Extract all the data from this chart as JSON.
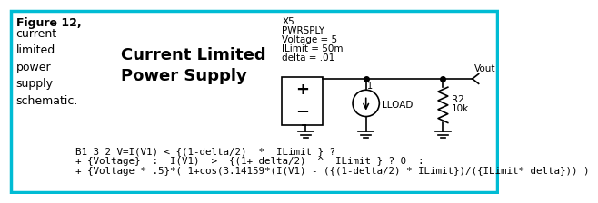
{
  "border_color": "#00bcd4",
  "background_color": "#ffffff",
  "fig_label_bold": "Figure 12,",
  "fig_label_rest": "current\nlimited\npower\nsupply\nschematic.",
  "title": "Current Limited\nPower Supply",
  "annotation_lines": [
    "B1 3 2 V=I(V1) < {(1-delta/2)  *  ILimit } ?",
    "+ {Voltage}  :  I(V1)  >  {(1+ delta/2)  ^  ILimit } ? 0  :",
    "+ {Voltage * .5}*( 1+cos(3.14159*(I(V1) - ({(1-delta/2) * ILimit})/({ILimit* delta})) )"
  ],
  "x5_label_lines": [
    "X5",
    "PWRSPLY",
    "Voltage = 5",
    "ILimit = 50m",
    "delta = .01"
  ],
  "vout_label": "Vout",
  "lload_label": "LLOAD",
  "r2_label_lines": [
    "R2",
    "10k"
  ],
  "node1_label": "1"
}
